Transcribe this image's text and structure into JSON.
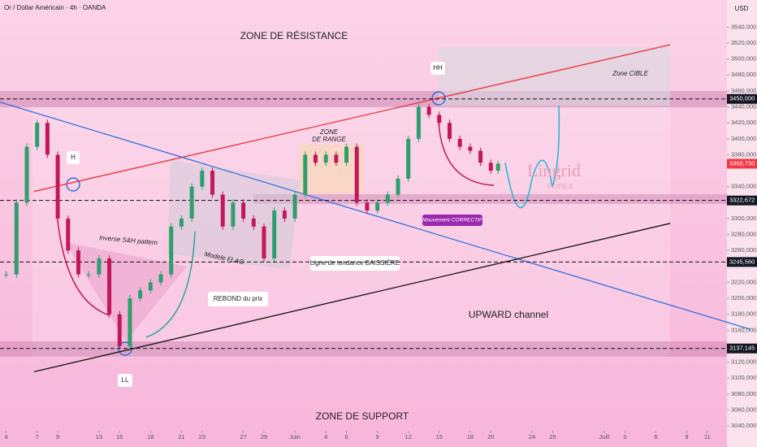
{
  "chart_data": {
    "type": "candlestick",
    "title": "Or / Dollar Américain · 4h · OANDA",
    "currency": "USD",
    "up_color": "#2e9e6e",
    "down_color": "#c2185b",
    "x": [
      4,
      5,
      6,
      7,
      8,
      9,
      10,
      11,
      12,
      13,
      14,
      15,
      16,
      17,
      18,
      19,
      20,
      21,
      22,
      23,
      24,
      25,
      26,
      27,
      28,
      29,
      30,
      31,
      32,
      33,
      34,
      35,
      36,
      37,
      38,
      39,
      40,
      41,
      42,
      43,
      44,
      45,
      46,
      47,
      48,
      49,
      50,
      51,
      51.7
    ],
    "values": [
      3230,
      3320,
      3390,
      3420,
      3380,
      3300,
      3260,
      3230,
      3230,
      3250,
      3180,
      3140,
      3200,
      3210,
      3220,
      3230,
      3290,
      3300,
      3340,
      3360,
      3330,
      3290,
      3320,
      3300,
      3290,
      3250,
      3310,
      3300,
      3330,
      3380,
      3370,
      3380,
      3370,
      3390,
      3320,
      3310,
      3320,
      3330,
      3350,
      3400,
      3440,
      3430,
      3420,
      3400,
      3390,
      3385,
      3370,
      3360,
      3368.75
    ],
    "xlim": [
      3.4,
      73.9
    ],
    "ylim": [
      3034,
      3574
    ],
    "xticks": [
      4,
      7,
      9,
      13,
      15,
      18,
      21,
      23,
      27,
      29,
      {
        "value": 32,
        "label": "Juin"
      },
      {
        "value": 35,
        "label": "4"
      },
      {
        "value": 37,
        "label": "6"
      },
      {
        "value": 40,
        "label": "9"
      },
      {
        "value": 43,
        "label": "12"
      },
      {
        "value": 46,
        "label": "15"
      },
      {
        "value": 49,
        "label": "18"
      },
      {
        "value": 51,
        "label": "20"
      },
      {
        "value": 55,
        "label": "24"
      },
      {
        "value": 57,
        "label": "26"
      },
      {
        "value": 62,
        "label": "Juill"
      },
      {
        "value": 64,
        "label": "3"
      },
      {
        "value": 67,
        "label": "6"
      },
      {
        "value": 70,
        "label": "9"
      },
      {
        "value": 72,
        "label": "11"
      }
    ],
    "yticks": [
      {
        "value": 3040,
        "label": "3040,000"
      },
      {
        "value": 3060,
        "label": "3060,000"
      },
      {
        "value": 3080,
        "label": "3080,000"
      },
      {
        "value": 3100,
        "label": "3100,000"
      },
      {
        "value": 3120,
        "label": "3120,000"
      },
      {
        "value": 3160,
        "label": "3160,000"
      },
      {
        "value": 3180,
        "label": "3180,000"
      },
      {
        "value": 3200,
        "label": "3200,000"
      },
      {
        "value": 3220,
        "label": "3220,000"
      },
      {
        "value": 3260,
        "label": "3260,000"
      },
      {
        "value": 3280,
        "label": "3280,000"
      },
      {
        "value": 3300,
        "label": "3300,000"
      },
      {
        "value": 3340,
        "label": "3340,000"
      },
      {
        "value": 3380,
        "label": "3380,000"
      },
      {
        "value": 3400,
        "label": "3400,000"
      },
      {
        "value": 3420,
        "label": "3420,000"
      },
      {
        "value": 3440,
        "label": "3440,000"
      },
      {
        "value": 3460,
        "label": "3460,000"
      },
      {
        "value": 3480,
        "label": "3480,000"
      },
      {
        "value": 3500,
        "label": "3500,000"
      },
      {
        "value": 3520,
        "label": "3520,000"
      },
      {
        "value": 3540,
        "label": "3540,000"
      }
    ],
    "levels": [
      {
        "value": 3450,
        "label": "3450,000"
      },
      {
        "value": 3322.672,
        "label": "3322,672"
      },
      {
        "value": 3245.56,
        "label": "3245,560"
      },
      {
        "value": 3137.145,
        "label": "3137,145"
      }
    ],
    "last_price": {
      "value": 3368.75,
      "label": "3368,750",
      "color": "#f23645"
    },
    "trend_lines": [
      {
        "color": "#e8323c",
        "x": [
          6.7,
          68.4
        ],
        "y": [
          3334,
          3518
        ]
      },
      {
        "color": "#2f6fe0",
        "x": [
          3.4,
          76.2
        ],
        "y": [
          3446,
          3161
        ]
      },
      {
        "color": "#111111",
        "x": [
          6.7,
          68.4
        ],
        "y": [
          3108,
          3294
        ]
      }
    ],
    "annotations": {
      "resistance": "ZONE DE RÉSISTANCE",
      "support": "ZONE DE SUPPORT",
      "hh": "HH",
      "h": "H",
      "ll": "LL",
      "target": "Zone CIBLE",
      "range1": "ZONE",
      "range2": "DE RANGE",
      "ish": "Inverse S&H pattern",
      "flag": "Modele FLAG",
      "rebound": "REBOND du prix",
      "trendline": "Ligne de tendance BAISSIÈRE",
      "corrective": "Mouvement CORRECTIF",
      "channel": "UPWARD channel",
      "brand1": "Lingrid",
      "brand2": "FOREX"
    }
  }
}
